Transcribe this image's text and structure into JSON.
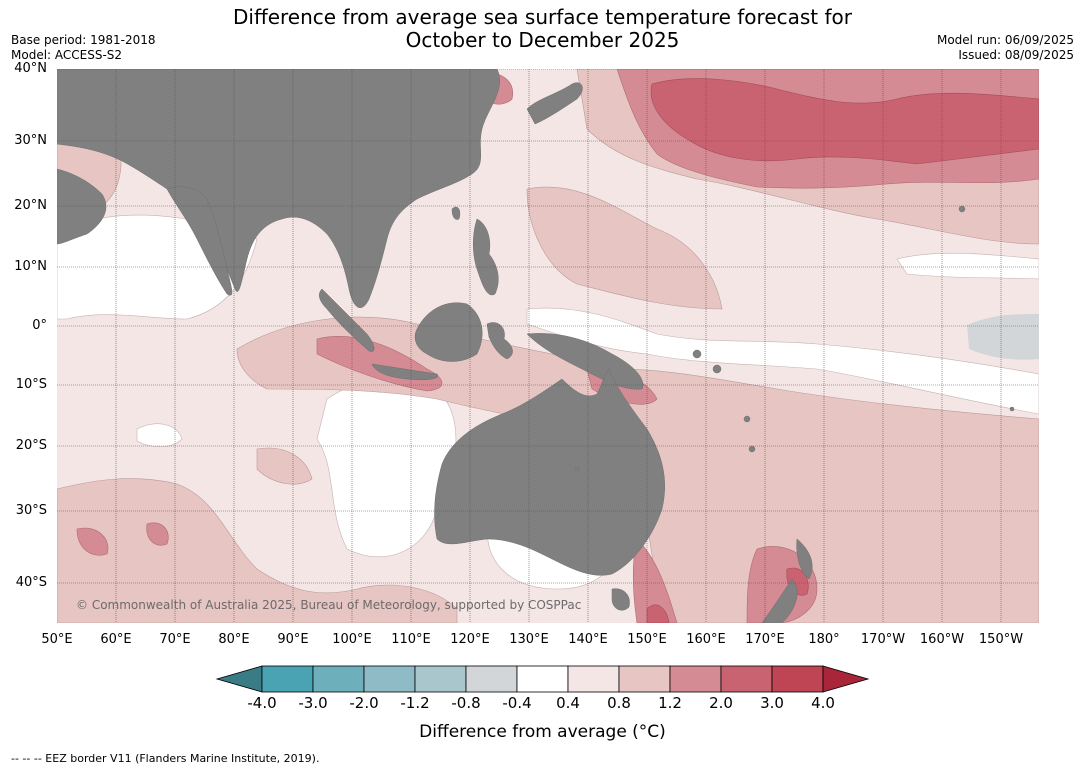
{
  "header": {
    "title_line1": "Difference from average sea surface temperature forecast for",
    "title_line2": "October to December 2025",
    "base_period": "Base period: 1981-2018",
    "model": "Model: ACCESS-S2",
    "model_run": "Model run: 06/09/2025",
    "issued": "Issued: 08/09/2025"
  },
  "map": {
    "lat_labels": [
      "40°N",
      "30°N",
      "20°N",
      "10°N",
      "0°",
      "10°S",
      "20°S",
      "30°S",
      "40°S"
    ],
    "lon_labels": [
      "50°E",
      "60°E",
      "70°E",
      "80°E",
      "90°E",
      "100°E",
      "110°E",
      "120°E",
      "130°E",
      "140°E",
      "150°E",
      "160°E",
      "170°E",
      "180°",
      "170°W",
      "160°W",
      "150°W"
    ],
    "copyright": "© Commonwealth of Australia 2025, Bureau of Meteorology, supported by COSPPac",
    "colors": {
      "land": "#808080",
      "anomaly_0_4_to_0_8": "#f3e6e5",
      "anomaly_0_8_to_1_2": "#e7c5c3",
      "anomaly_1_2_to_2_0": "#d48b93",
      "anomaly_2_0_to_3_0": "#c96371",
      "neutral": "#ffffff",
      "neutral_grey": "#d3d6d8"
    }
  },
  "colorbar": {
    "ticks": [
      "-4.0",
      "-3.0",
      "-2.0",
      "-1.2",
      "-0.8",
      "-0.4",
      "0.4",
      "0.8",
      "1.2",
      "2.0",
      "3.0",
      "4.0"
    ],
    "colors": [
      "#3a7c86",
      "#4aa3b2",
      "#6eafbc",
      "#8ebbc6",
      "#a9c6cc",
      "#d3d6d8",
      "#ffffff",
      "#f3e6e5",
      "#e7c5c3",
      "#d48b93",
      "#c96371",
      "#bf4554",
      "#a9253a"
    ],
    "label": "Difference from average (°C)"
  },
  "footer": {
    "eez_note": "--  --  -- EEZ border V11 (Flanders Marine Institute, 2019)."
  }
}
